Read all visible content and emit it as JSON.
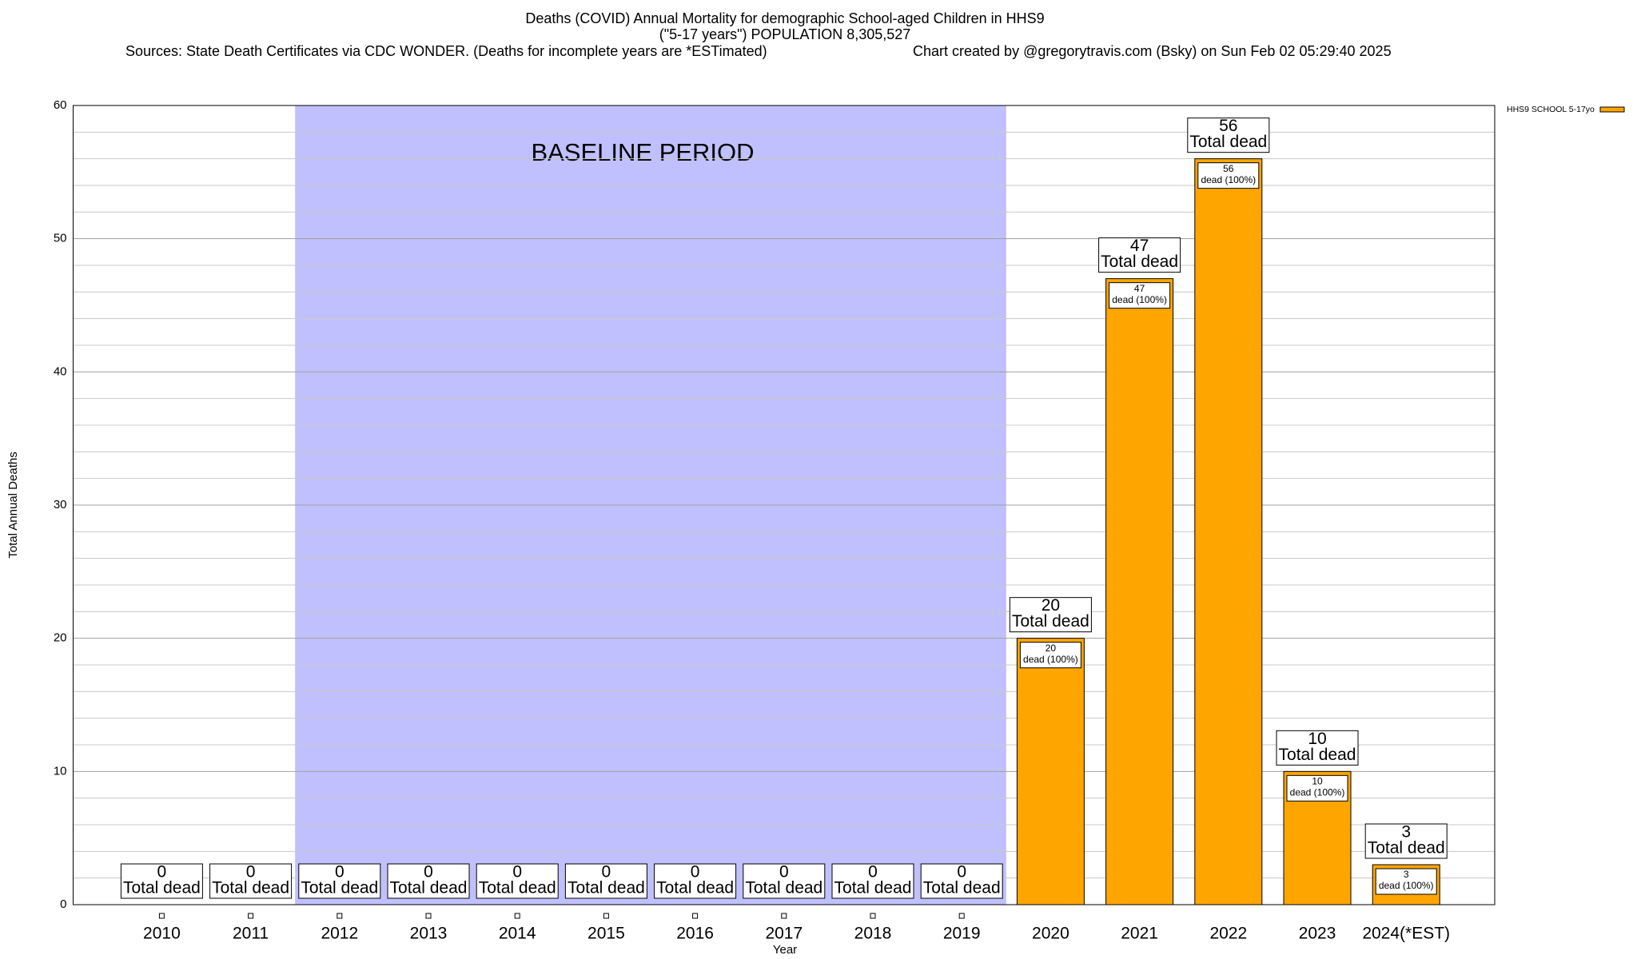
{
  "chart_data": {
    "type": "bar",
    "title": "Deaths (COVID) Annual Mortality for demographic School-aged Children in HHS9",
    "subtitle": "(\"5-17 years\") POPULATION 8,305,527",
    "source": "Sources: State Death Certificates via CDC WONDER. (Deaths for incomplete years are *ESTimated)",
    "credit": "Chart created by @gregorytravis.com (Bsky) on Sun Feb 02 05:29:40 2025",
    "x_label": "Year",
    "y_label": "Total Annual Deaths",
    "categories": [
      "2010",
      "2011",
      "2012",
      "2013",
      "2014",
      "2015",
      "2016",
      "2017",
      "2018",
      "2019",
      "2020",
      "2021",
      "2022",
      "2023",
      "2024(*EST)"
    ],
    "series": [
      {
        "name": "HHS9 SCHOOL 5-17yo",
        "color": "#ffa500",
        "values": [
          0,
          0,
          0,
          0,
          0,
          0,
          0,
          0,
          0,
          0,
          20,
          47,
          56,
          10,
          3
        ]
      }
    ],
    "total_label": "Total dead",
    "share_label": "dead (100%)",
    "ylim": [
      0,
      60
    ],
    "yticks": [
      0,
      10,
      20,
      30,
      40,
      50,
      60
    ],
    "minor_yticks": [
      2,
      4,
      6,
      8,
      12,
      14,
      16,
      18,
      22,
      24,
      26,
      28,
      32,
      34,
      36,
      38,
      42,
      44,
      46,
      48,
      52,
      54,
      56,
      58
    ],
    "grid": true,
    "legend": "top-right",
    "annotations": [
      {
        "text": "BASELINE PERIOD",
        "from": "2012",
        "to": "2019",
        "color": "#c0c0ff"
      }
    ]
  }
}
